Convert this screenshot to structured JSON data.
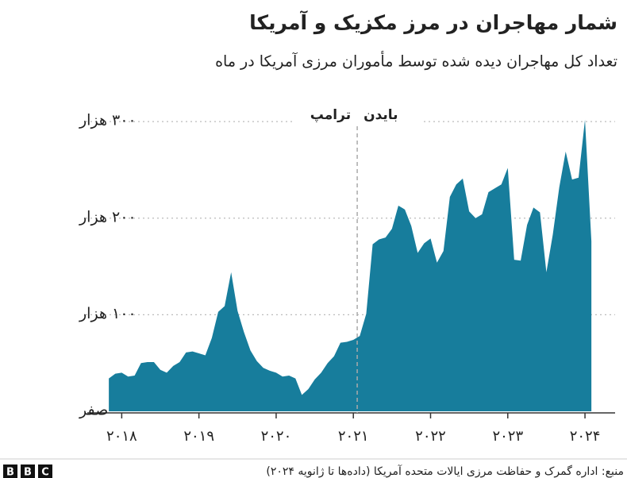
{
  "chart_data": {
    "type": "area",
    "title": "شمار مهاجران در مرز مکزیک و آمریکا",
    "subtitle": "تعداد کل مهاجران دیده شده توسط مأموران مرزی آمریکا در ماه",
    "source": "منبع: اداره گمرک و حفاظت مرزی ایالات متحده آمریکا (داده‌ها تا ژانویه ۲۰۲۴)",
    "logo": [
      "B",
      "B",
      "C"
    ],
    "color": "#177d9c",
    "x": [
      2017.833,
      2017.917,
      2018.0,
      2018.083,
      2018.167,
      2018.25,
      2018.333,
      2018.417,
      2018.5,
      2018.583,
      2018.667,
      2018.75,
      2018.833,
      2018.917,
      2019.0,
      2019.083,
      2019.167,
      2019.25,
      2019.333,
      2019.417,
      2019.5,
      2019.583,
      2019.667,
      2019.75,
      2019.833,
      2019.917,
      2020.0,
      2020.083,
      2020.167,
      2020.25,
      2020.333,
      2020.417,
      2020.5,
      2020.583,
      2020.667,
      2020.75,
      2020.833,
      2020.917,
      2021.0,
      2021.083,
      2021.167,
      2021.25,
      2021.333,
      2021.417,
      2021.5,
      2021.583,
      2021.667,
      2021.75,
      2021.833,
      2021.917,
      2022.0,
      2022.083,
      2022.167,
      2022.25,
      2022.333,
      2022.417,
      2022.5,
      2022.583,
      2022.667,
      2022.75,
      2022.833,
      2022.917,
      2023.0,
      2023.083,
      2023.167,
      2023.25,
      2023.333,
      2023.417,
      2023.5,
      2023.583,
      2023.667,
      2023.75,
      2023.833,
      2023.917,
      2024.0,
      2024.083
    ],
    "values": [
      34000,
      39000,
      40000,
      36000,
      37000,
      50000,
      51000,
      51000,
      43000,
      40000,
      47000,
      51000,
      61000,
      62000,
      60000,
      58000,
      76000,
      103000,
      109000,
      144000,
      104000,
      82000,
      63000,
      52000,
      45000,
      42000,
      40000,
      36000,
      37000,
      34000,
      17000,
      23000,
      33000,
      40000,
      50000,
      57000,
      71000,
      72000,
      74000,
      78000,
      101000,
      173000,
      178000,
      180000,
      189000,
      213000,
      209000,
      192000,
      164000,
      174000,
      179000,
      154000,
      166000,
      222000,
      235000,
      241000,
      207000,
      200000,
      204000,
      227000,
      231000,
      235000,
      252000,
      157000,
      156000,
      193000,
      211000,
      206000,
      144000,
      183000,
      232000,
      269000,
      240000,
      242000,
      302000,
      176000
    ],
    "xlim": [
      2017.4,
      2024.39
    ],
    "xticks": [
      {
        "value": 2018,
        "label": "۲۰۱۸"
      },
      {
        "value": 2019,
        "label": "۲۰۱۹"
      },
      {
        "value": 2020,
        "label": "۲۰۲۰"
      },
      {
        "value": 2021,
        "label": "۲۰۲۱"
      },
      {
        "value": 2022,
        "label": "۲۰۲۲"
      },
      {
        "value": 2023,
        "label": "۲۰۲۳"
      },
      {
        "value": 2024,
        "label": "۲۰۲۴"
      }
    ],
    "ylim": [
      0,
      310000
    ],
    "yticks": [
      {
        "value": 0,
        "label": "صفر"
      },
      {
        "value": 100000,
        "label": "۱۰۰ هزار"
      },
      {
        "value": 200000,
        "label": "۲۰۰ هزار"
      },
      {
        "value": 300000,
        "label": "۳۰۰ هزار"
      }
    ],
    "grid": true,
    "divider": {
      "x": 2021.05,
      "left_label": "ترامپ",
      "right_label": "بایدن"
    }
  }
}
